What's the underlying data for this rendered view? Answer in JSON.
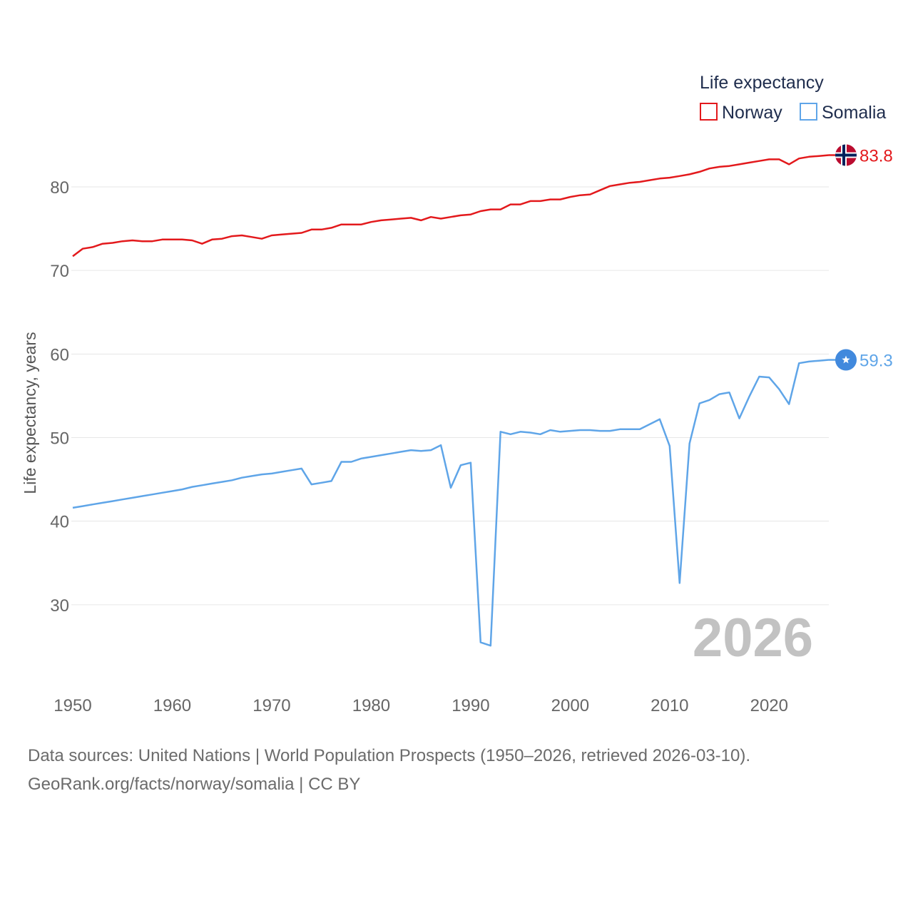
{
  "chart_data": {
    "type": "line",
    "title": "",
    "xlabel": "",
    "ylabel": "Life expectancy, years",
    "xlim": [
      1950,
      2026
    ],
    "ylim": [
      20,
      87
    ],
    "yticks": [
      30,
      40,
      50,
      60,
      70,
      80
    ],
    "xticks": [
      1950,
      1960,
      1970,
      1980,
      1990,
      2000,
      2010,
      2020
    ],
    "grid": true,
    "legend_title": "Life expectancy",
    "legend_position": "top-right",
    "watermark_year": "2026",
    "x": [
      1950,
      1951,
      1952,
      1953,
      1954,
      1955,
      1956,
      1957,
      1958,
      1959,
      1960,
      1961,
      1962,
      1963,
      1964,
      1965,
      1966,
      1967,
      1968,
      1969,
      1970,
      1971,
      1972,
      1973,
      1974,
      1975,
      1976,
      1977,
      1978,
      1979,
      1980,
      1981,
      1982,
      1983,
      1984,
      1985,
      1986,
      1987,
      1988,
      1989,
      1990,
      1991,
      1992,
      1993,
      1994,
      1995,
      1996,
      1997,
      1998,
      1999,
      2000,
      2001,
      2002,
      2003,
      2004,
      2005,
      2006,
      2007,
      2008,
      2009,
      2010,
      2011,
      2012,
      2013,
      2014,
      2015,
      2016,
      2017,
      2018,
      2019,
      2020,
      2021,
      2022,
      2023,
      2024,
      2025,
      2026
    ],
    "series": [
      {
        "name": "Norway",
        "color": "#e3191c",
        "end_label": "83.8",
        "flag": "norway",
        "values": [
          71.7,
          72.6,
          72.8,
          73.2,
          73.3,
          73.5,
          73.6,
          73.5,
          73.5,
          73.7,
          73.7,
          73.7,
          73.6,
          73.2,
          73.7,
          73.8,
          74.1,
          74.2,
          74.0,
          73.8,
          74.2,
          74.3,
          74.4,
          74.5,
          74.9,
          74.9,
          75.1,
          75.5,
          75.5,
          75.5,
          75.8,
          76.0,
          76.1,
          76.2,
          76.3,
          76.0,
          76.4,
          76.2,
          76.4,
          76.6,
          76.7,
          77.1,
          77.3,
          77.3,
          77.9,
          77.9,
          78.3,
          78.3,
          78.5,
          78.5,
          78.8,
          79.0,
          79.1,
          79.6,
          80.1,
          80.3,
          80.5,
          80.6,
          80.8,
          81.0,
          81.1,
          81.3,
          81.5,
          81.8,
          82.2,
          82.4,
          82.5,
          82.7,
          82.9,
          83.1,
          83.3,
          83.3,
          82.7,
          83.4,
          83.6,
          83.7,
          83.8
        ]
      },
      {
        "name": "Somalia",
        "color": "#5fa5e8",
        "end_label": "59.3",
        "flag": "somalia",
        "values": [
          41.6,
          41.8,
          42.0,
          42.2,
          42.4,
          42.6,
          42.8,
          43.0,
          43.2,
          43.4,
          43.6,
          43.8,
          44.1,
          44.3,
          44.5,
          44.7,
          44.9,
          45.2,
          45.4,
          45.6,
          45.7,
          45.9,
          46.1,
          46.3,
          44.4,
          44.6,
          44.8,
          47.1,
          47.1,
          47.5,
          47.7,
          47.9,
          48.1,
          48.3,
          48.5,
          48.4,
          48.5,
          49.1,
          44.0,
          46.7,
          47.0,
          25.5,
          25.1,
          50.7,
          50.4,
          50.7,
          50.6,
          50.4,
          50.9,
          50.7,
          50.8,
          50.9,
          50.9,
          50.8,
          50.8,
          51.0,
          51.0,
          51.0,
          51.6,
          52.2,
          49.0,
          32.6,
          49.3,
          54.1,
          54.5,
          55.2,
          55.4,
          52.3,
          54.9,
          57.3,
          57.2,
          55.8,
          54.0,
          58.9,
          59.1,
          59.2,
          59.3
        ]
      }
    ]
  },
  "footer": {
    "line1": "Data sources: United Nations | World Population Prospects (1950–2026, retrieved 2026-03-10).",
    "line2": "GeoRank.org/facts/norway/somalia | CC BY"
  }
}
